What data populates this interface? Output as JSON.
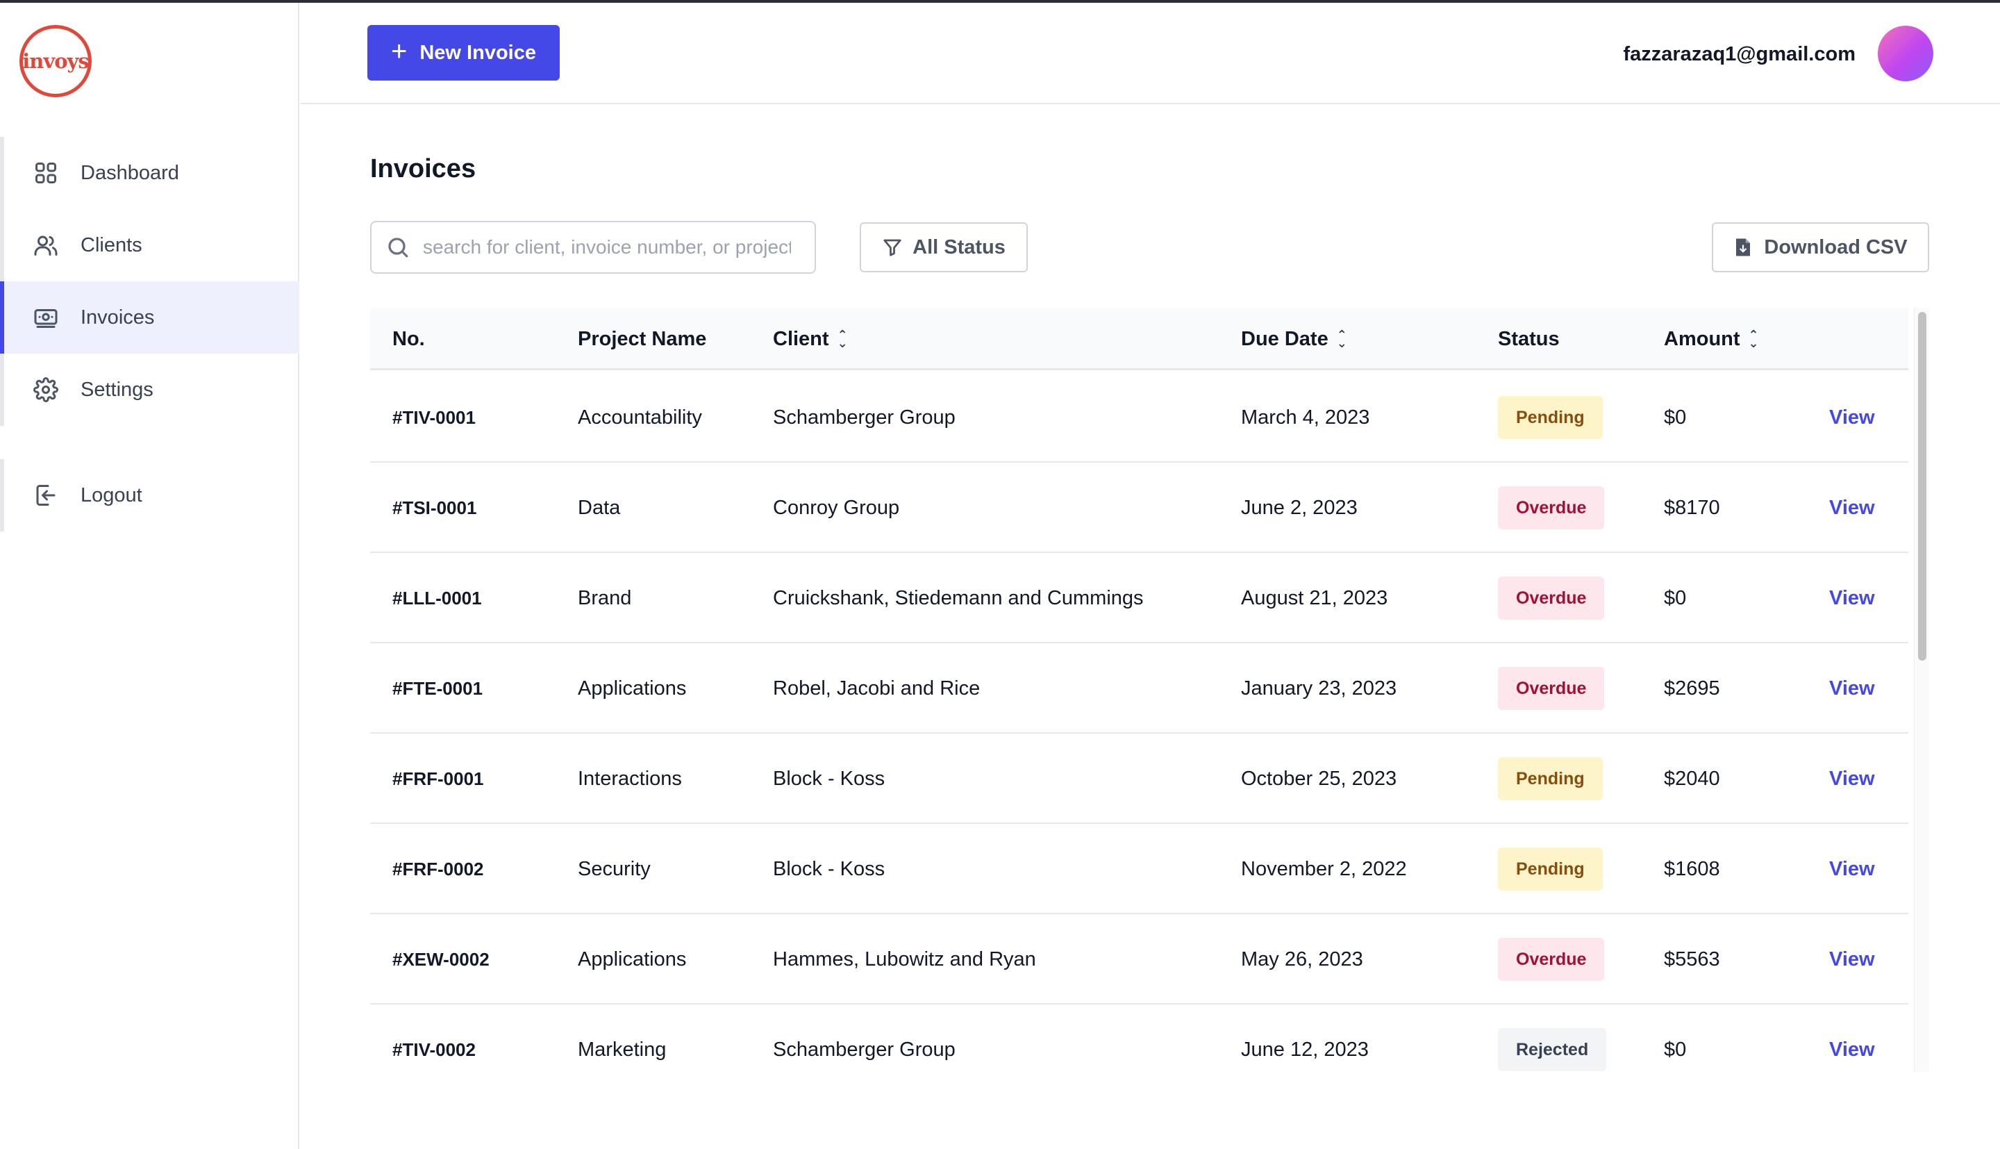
{
  "app": {
    "logo_text": "invoys"
  },
  "sidebar": {
    "items": [
      {
        "label": "Dashboard",
        "icon": "grid-icon"
      },
      {
        "label": "Clients",
        "icon": "users-icon"
      },
      {
        "label": "Invoices",
        "icon": "banknote-icon",
        "active": true
      },
      {
        "label": "Settings",
        "icon": "gear-icon"
      }
    ],
    "logout": {
      "label": "Logout",
      "icon": "logout-icon"
    }
  },
  "header": {
    "new_invoice_label": "New Invoice",
    "user_email": "fazzarazaq1@gmail.com"
  },
  "main": {
    "title": "Invoices",
    "search": {
      "placeholder": "search for client, invoice number, or project",
      "value": ""
    },
    "status_filter_label": "All Status",
    "download_csv_label": "Download CSV"
  },
  "table": {
    "columns": [
      {
        "label": "No.",
        "sortable": false
      },
      {
        "label": "Project Name",
        "sortable": false
      },
      {
        "label": "Client",
        "sortable": true
      },
      {
        "label": "Due Date",
        "sortable": true
      },
      {
        "label": "Status",
        "sortable": false
      },
      {
        "label": "Amount",
        "sortable": true
      }
    ],
    "action_label": "View",
    "rows": [
      {
        "no": "#TIV-0001",
        "project": "Accountability",
        "client": "Schamberger Group",
        "due": "March 4, 2023",
        "status": "Pending",
        "amount": "$0"
      },
      {
        "no": "#TSI-0001",
        "project": "Data",
        "client": "Conroy Group",
        "due": "June 2, 2023",
        "status": "Overdue",
        "amount": "$8170"
      },
      {
        "no": "#LLL-0001",
        "project": "Brand",
        "client": "Cruickshank, Stiedemann and Cummings",
        "due": "August 21, 2023",
        "status": "Overdue",
        "amount": "$0"
      },
      {
        "no": "#FTE-0001",
        "project": "Applications",
        "client": "Robel, Jacobi and Rice",
        "due": "January 23, 2023",
        "status": "Overdue",
        "amount": "$2695"
      },
      {
        "no": "#FRF-0001",
        "project": "Interactions",
        "client": "Block - Koss",
        "due": "October 25, 2023",
        "status": "Pending",
        "amount": "$2040"
      },
      {
        "no": "#FRF-0002",
        "project": "Security",
        "client": "Block - Koss",
        "due": "November 2, 2022",
        "status": "Pending",
        "amount": "$1608"
      },
      {
        "no": "#XEW-0002",
        "project": "Applications",
        "client": "Hammes, Lubowitz and Ryan",
        "due": "May 26, 2023",
        "status": "Overdue",
        "amount": "$5563"
      },
      {
        "no": "#TIV-0002",
        "project": "Marketing",
        "client": "Schamberger Group",
        "due": "June 12, 2023",
        "status": "Rejected",
        "amount": "$0"
      }
    ]
  },
  "colors": {
    "accent": "#4448e6",
    "logo": "#e2483a",
    "pending_bg": "#fdf5c9",
    "overdue_bg": "#fde6ec",
    "rejected_bg": "#f3f4f6"
  }
}
